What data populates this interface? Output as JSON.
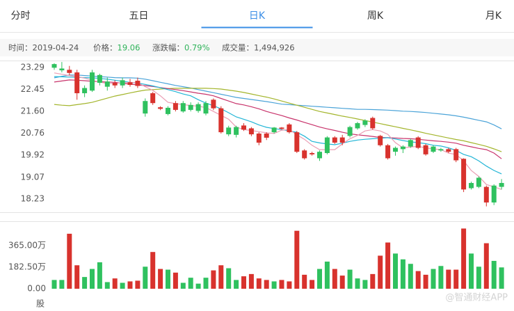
{
  "tabs": [
    "分时",
    "五日",
    "日K",
    "周K",
    "月K"
  ],
  "active_tab": 2,
  "info": [
    {
      "label": "时间：",
      "value": "2019-04-24"
    },
    {
      "label": "价格：",
      "value": "19.06",
      "color": "#2fb35a"
    },
    {
      "label": "涨跌幅：",
      "value": "0.79%",
      "color": "#2fb35a"
    },
    {
      "label": "成交量：",
      "value": "1,494,926"
    }
  ],
  "watermark": "@智通财经APP",
  "chart_data": {
    "type": "candlestick",
    "up_color": "#d8322d",
    "down_color": "#2fc15f",
    "grid": false,
    "ylim": [
      17.86,
      23.53
    ],
    "yticks": [
      23.29,
      22.45,
      {
        "value": 21.6,
        "label": "21.60"
      },
      20.76,
      19.92,
      19.07,
      18.23
    ],
    "open": [
      23.42,
      23.25,
      23.08,
      22.3,
      22.5,
      23.1,
      23.0,
      22.75,
      22.6,
      22.8,
      22.62,
      22.58,
      22.0,
      21.92,
      21.7,
      21.74,
      21.66,
      21.92,
      21.85,
      21.88,
      21.92,
      21.72,
      20.8,
      20.98,
      21.0,
      20.9,
      20.72,
      20.4,
      20.59,
      20.98,
      20.93,
      20.8,
      20.05,
      19.8,
      19.95,
      20.05,
      20.6,
      20.4,
      20.4,
      21.0,
      21.15,
      21.25,
      20.95,
      20.3,
      19.8,
      20.2,
      20.25,
      20.5,
      20.2,
      19.95,
      20.25,
      20.15,
      20.05,
      19.72,
      18.6,
      18.85,
      19.05,
      18.1,
      18.75,
      18.85
    ],
    "high": [
      23.45,
      23.5,
      23.35,
      23.2,
      22.6,
      23.2,
      23.05,
      22.9,
      22.8,
      22.9,
      22.85,
      22.9,
      22.1,
      22.35,
      21.8,
      21.8,
      22.0,
      22.0,
      21.95,
      21.95,
      22.0,
      22.1,
      21.8,
      21.05,
      21.05,
      21.15,
      21.0,
      20.8,
      20.8,
      21.0,
      21.0,
      21.15,
      20.85,
      20.15,
      20.05,
      20.1,
      20.65,
      20.65,
      20.7,
      21.05,
      21.2,
      21.3,
      21.4,
      20.7,
      20.35,
      20.25,
      20.3,
      20.55,
      20.65,
      20.35,
      20.3,
      20.2,
      20.2,
      20.2,
      19.8,
      18.9,
      19.1,
      18.75,
      18.8,
      19.0
    ],
    "low": [
      23.2,
      23.1,
      23.0,
      22.05,
      22.15,
      22.35,
      22.6,
      22.4,
      22.5,
      22.5,
      22.55,
      22.5,
      21.4,
      21.85,
      21.65,
      21.45,
      21.6,
      21.55,
      21.6,
      21.55,
      21.45,
      21.65,
      20.75,
      20.65,
      20.6,
      20.85,
      20.65,
      20.3,
      20.5,
      20.75,
      20.9,
      20.75,
      20.0,
      19.75,
      19.9,
      19.7,
      19.95,
      20.35,
      20.3,
      20.6,
      20.9,
      21.0,
      20.9,
      20.25,
      19.75,
      19.9,
      20.0,
      20.2,
      20.15,
      19.9,
      20.0,
      20.05,
      20.0,
      19.65,
      18.5,
      18.6,
      18.65,
      17.95,
      18.0,
      18.6
    ],
    "close": [
      23.28,
      23.18,
      23.2,
      23.1,
      22.3,
      22.4,
      22.7,
      22.55,
      22.7,
      22.6,
      22.72,
      22.78,
      21.52,
      22.3,
      21.76,
      21.5,
      21.92,
      21.6,
      21.66,
      21.62,
      21.52,
      22.05,
      21.72,
      20.72,
      20.7,
      21.06,
      20.95,
      20.75,
      20.75,
      20.8,
      20.98,
      21.1,
      20.8,
      20.1,
      20.0,
      19.8,
      20.0,
      20.6,
      20.6,
      20.66,
      20.95,
      21.08,
      21.35,
      20.66,
      20.3,
      20.05,
      20.15,
      20.25,
      20.6,
      20.3,
      20.05,
      20.1,
      20.15,
      20.15,
      19.78,
      18.65,
      18.7,
      18.7,
      18.1,
      18.7
    ],
    "ma_lines": [
      {
        "color": "#4aa3d8",
        "values": [
          22.89,
          22.95,
          23.0,
          23.0,
          22.98,
          22.96,
          22.94,
          22.92,
          22.9,
          22.89,
          22.89,
          22.88,
          22.84,
          22.78,
          22.72,
          22.66,
          22.6,
          22.55,
          22.5,
          22.44,
          22.38,
          22.32,
          22.26,
          22.2,
          22.14,
          22.1,
          22.06,
          22.02,
          21.98,
          21.93,
          21.88,
          21.86,
          21.84,
          21.82,
          21.8,
          21.78,
          21.76,
          21.74,
          21.72,
          21.7,
          21.68,
          21.68,
          21.67,
          21.66,
          21.65,
          21.63,
          21.61,
          21.6,
          21.58,
          21.56,
          21.53,
          21.5,
          21.47,
          21.43,
          21.38,
          21.32,
          21.26,
          21.2,
          21.08,
          20.93
        ]
      },
      {
        "color": "#a3b52b",
        "values": [
          21.87,
          21.84,
          21.82,
          21.86,
          21.9,
          21.95,
          22.03,
          22.11,
          22.19,
          22.25,
          22.31,
          22.37,
          22.42,
          22.44,
          22.46,
          22.48,
          22.49,
          22.49,
          22.49,
          22.49,
          22.49,
          22.48,
          22.46,
          22.42,
          22.38,
          22.33,
          22.27,
          22.21,
          22.15,
          22.08,
          22.0,
          21.92,
          21.84,
          21.76,
          21.68,
          21.6,
          21.54,
          21.48,
          21.42,
          21.37,
          21.31,
          21.25,
          21.19,
          21.13,
          21.07,
          21.01,
          20.95,
          20.89,
          20.83,
          20.76,
          20.7,
          20.64,
          20.58,
          20.52,
          20.47,
          20.4,
          20.33,
          20.26,
          20.16,
          20.05
        ]
      },
      {
        "color": "#c8336b",
        "values": [
          22.73,
          22.77,
          22.81,
          22.8,
          22.78,
          22.76,
          22.74,
          22.73,
          22.72,
          22.68,
          22.65,
          22.62,
          22.59,
          22.56,
          22.52,
          22.48,
          22.44,
          22.4,
          22.35,
          22.3,
          22.26,
          22.2,
          22.1,
          22.0,
          21.9,
          21.85,
          21.78,
          21.7,
          21.6,
          21.52,
          21.44,
          21.35,
          21.27,
          21.18,
          21.09,
          21.0,
          20.93,
          20.87,
          20.8,
          20.74,
          20.7,
          20.67,
          20.64,
          20.6,
          20.59,
          20.58,
          20.56,
          20.55,
          20.53,
          20.5,
          20.47,
          20.45,
          20.42,
          20.38,
          20.3,
          20.24,
          20.18,
          20.13,
          20.0,
          19.78
        ]
      },
      {
        "color": "#22b5d6",
        "values": [
          22.94,
          22.93,
          22.92,
          22.91,
          22.9,
          22.89,
          22.87,
          22.84,
          22.8,
          22.76,
          22.72,
          22.69,
          22.64,
          22.58,
          22.51,
          22.44,
          22.36,
          22.27,
          22.2,
          22.05,
          21.92,
          21.82,
          21.7,
          21.55,
          21.39,
          21.3,
          21.2,
          21.08,
          20.99,
          20.94,
          20.9,
          20.85,
          20.8,
          20.65,
          20.45,
          20.39,
          20.35,
          20.32,
          20.38,
          20.45,
          20.5,
          20.53,
          20.55,
          20.57,
          20.59,
          20.54,
          20.48,
          20.43,
          20.4,
          20.36,
          20.3,
          20.27,
          20.2,
          20.1,
          19.95,
          19.86,
          19.7,
          19.5,
          19.33,
          19.2
        ]
      },
      {
        "color": "#eb9db3",
        "values": [
          23.08,
          23.03,
          22.98,
          22.94,
          22.88,
          22.8,
          22.73,
          22.67,
          22.68,
          22.7,
          22.72,
          22.7,
          22.55,
          22.41,
          22.2,
          21.95,
          21.9,
          21.86,
          21.83,
          21.8,
          21.75,
          21.6,
          21.45,
          21.3,
          21.0,
          20.9,
          20.87,
          20.82,
          20.78,
          20.75,
          20.88,
          20.9,
          20.7,
          20.53,
          20.3,
          20.13,
          20.13,
          20.13,
          20.35,
          20.55,
          20.68,
          20.85,
          20.9,
          20.85,
          20.72,
          20.4,
          20.2,
          20.23,
          20.26,
          20.2,
          20.16,
          20.13,
          20.0,
          19.94,
          19.7,
          19.33,
          19.1,
          18.79,
          18.7,
          18.6
        ]
      }
    ],
    "volume": {
      "unit": "股",
      "ylim": [
        0,
        540
      ],
      "yticks": [
        {
          "value": 365,
          "label": "365.00万"
        },
        {
          "value": 182.5,
          "label": "182.50万"
        },
        {
          "value": 0,
          "label": "0.00"
        }
      ],
      "values": [
        74,
        74,
        464,
        198,
        99,
        167,
        223,
        56,
        87,
        50,
        62,
        68,
        186,
        310,
        167,
        161,
        136,
        50,
        93,
        43,
        93,
        155,
        198,
        173,
        74,
        105,
        124,
        87,
        74,
        62,
        74,
        62,
        489,
        118,
        74,
        167,
        229,
        167,
        111,
        161,
        87,
        74,
        124,
        279,
        390,
        297,
        248,
        210,
        149,
        118,
        167,
        192,
        161,
        161,
        508,
        297,
        186,
        384,
        235,
        180
      ]
    }
  }
}
